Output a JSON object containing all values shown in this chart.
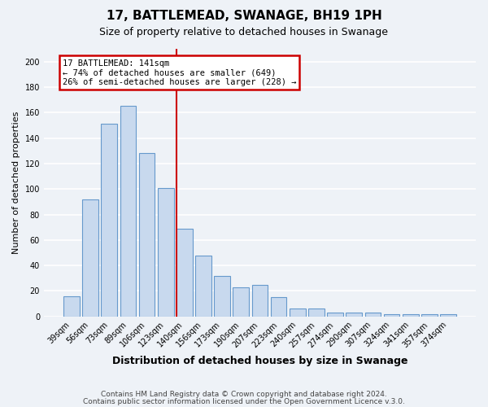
{
  "title": "17, BATTLEMEAD, SWANAGE, BH19 1PH",
  "subtitle": "Size of property relative to detached houses in Swanage",
  "xlabel": "Distribution of detached houses by size in Swanage",
  "ylabel": "Number of detached properties",
  "bar_labels": [
    "39sqm",
    "56sqm",
    "73sqm",
    "89sqm",
    "106sqm",
    "123sqm",
    "140sqm",
    "156sqm",
    "173sqm",
    "190sqm",
    "207sqm",
    "223sqm",
    "240sqm",
    "257sqm",
    "274sqm",
    "290sqm",
    "307sqm",
    "324sqm",
    "341sqm",
    "357sqm",
    "374sqm"
  ],
  "bar_values": [
    16,
    92,
    151,
    165,
    128,
    101,
    69,
    48,
    32,
    23,
    25,
    15,
    6,
    6,
    3,
    3,
    3,
    2,
    2,
    2,
    2
  ],
  "bar_color": "#c8d9ee",
  "bar_edge_color": "#6699cc",
  "marker_line_color": "#cc0000",
  "annotation_line1": "17 BATTLEMEAD: 141sqm",
  "annotation_line2": "← 74% of detached houses are smaller (649)",
  "annotation_line3": "26% of semi-detached houses are larger (228) →",
  "annotation_box_color": "#cc0000",
  "ylim": [
    0,
    210
  ],
  "yticks": [
    0,
    20,
    40,
    60,
    80,
    100,
    120,
    140,
    160,
    180,
    200
  ],
  "footer1": "Contains HM Land Registry data © Crown copyright and database right 2024.",
  "footer2": "Contains public sector information licensed under the Open Government Licence v.3.0.",
  "background_color": "#eef2f7",
  "plot_background_color": "#eef2f7",
  "grid_color": "#ffffff"
}
